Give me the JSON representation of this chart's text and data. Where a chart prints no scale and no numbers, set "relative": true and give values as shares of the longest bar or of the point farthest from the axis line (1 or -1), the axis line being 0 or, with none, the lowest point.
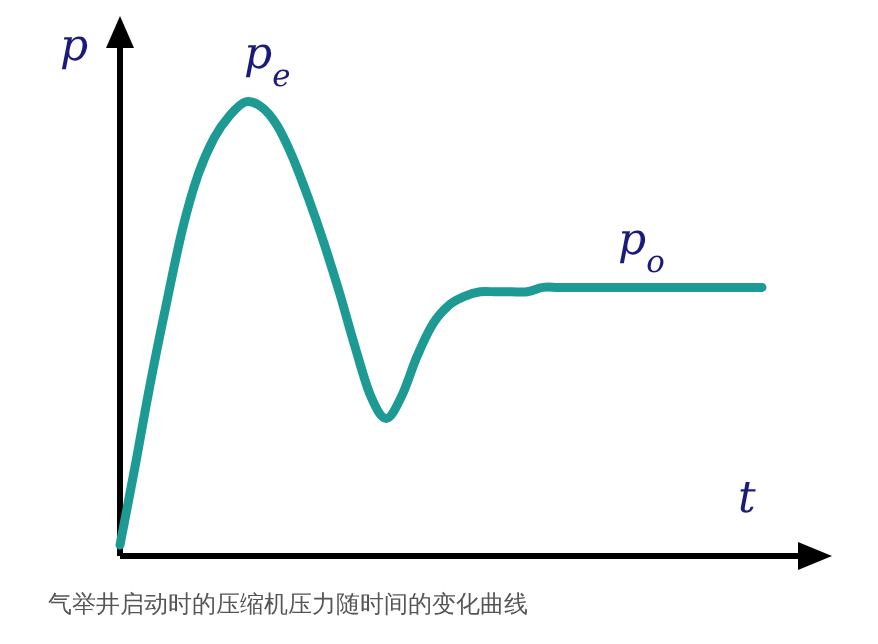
{
  "chart_data": {
    "type": "line",
    "relative": true,
    "xlabel": "t",
    "ylabel": "p",
    "categories": [
      null,
      null,
      null,
      null,
      null,
      null,
      null,
      null,
      null,
      null,
      null,
      null,
      null,
      null,
      null,
      null,
      null,
      null,
      null,
      null,
      null,
      null,
      null,
      null,
      null,
      null,
      null,
      null,
      null,
      null,
      null,
      null,
      null,
      null,
      null,
      null,
      null,
      null,
      null,
      null,
      null,
      null
    ],
    "series": [
      {
        "color": "#1e9a94",
        "values": [
          0.02,
          0.2,
          0.39,
          0.56,
          0.72,
          0.84,
          0.92,
          0.97,
          1.0,
          0.99,
          0.95,
          0.88,
          0.79,
          0.69,
          0.58,
          0.46,
          0.35,
          0.3,
          0.35,
          0.44,
          0.51,
          0.55,
          0.57,
          0.58,
          0.58,
          0.58,
          0.58,
          0.59,
          0.59,
          0.59,
          0.59,
          0.59,
          0.59,
          0.59,
          0.59,
          0.59,
          0.59,
          0.59,
          0.59,
          0.59,
          0.59,
          0.59
        ]
      }
    ],
    "annotations": [
      "p$_{e}$",
      "p$_{o}$",
      "气举井启动时的压缩机压力随时间的变化曲线"
    ]
  }
}
